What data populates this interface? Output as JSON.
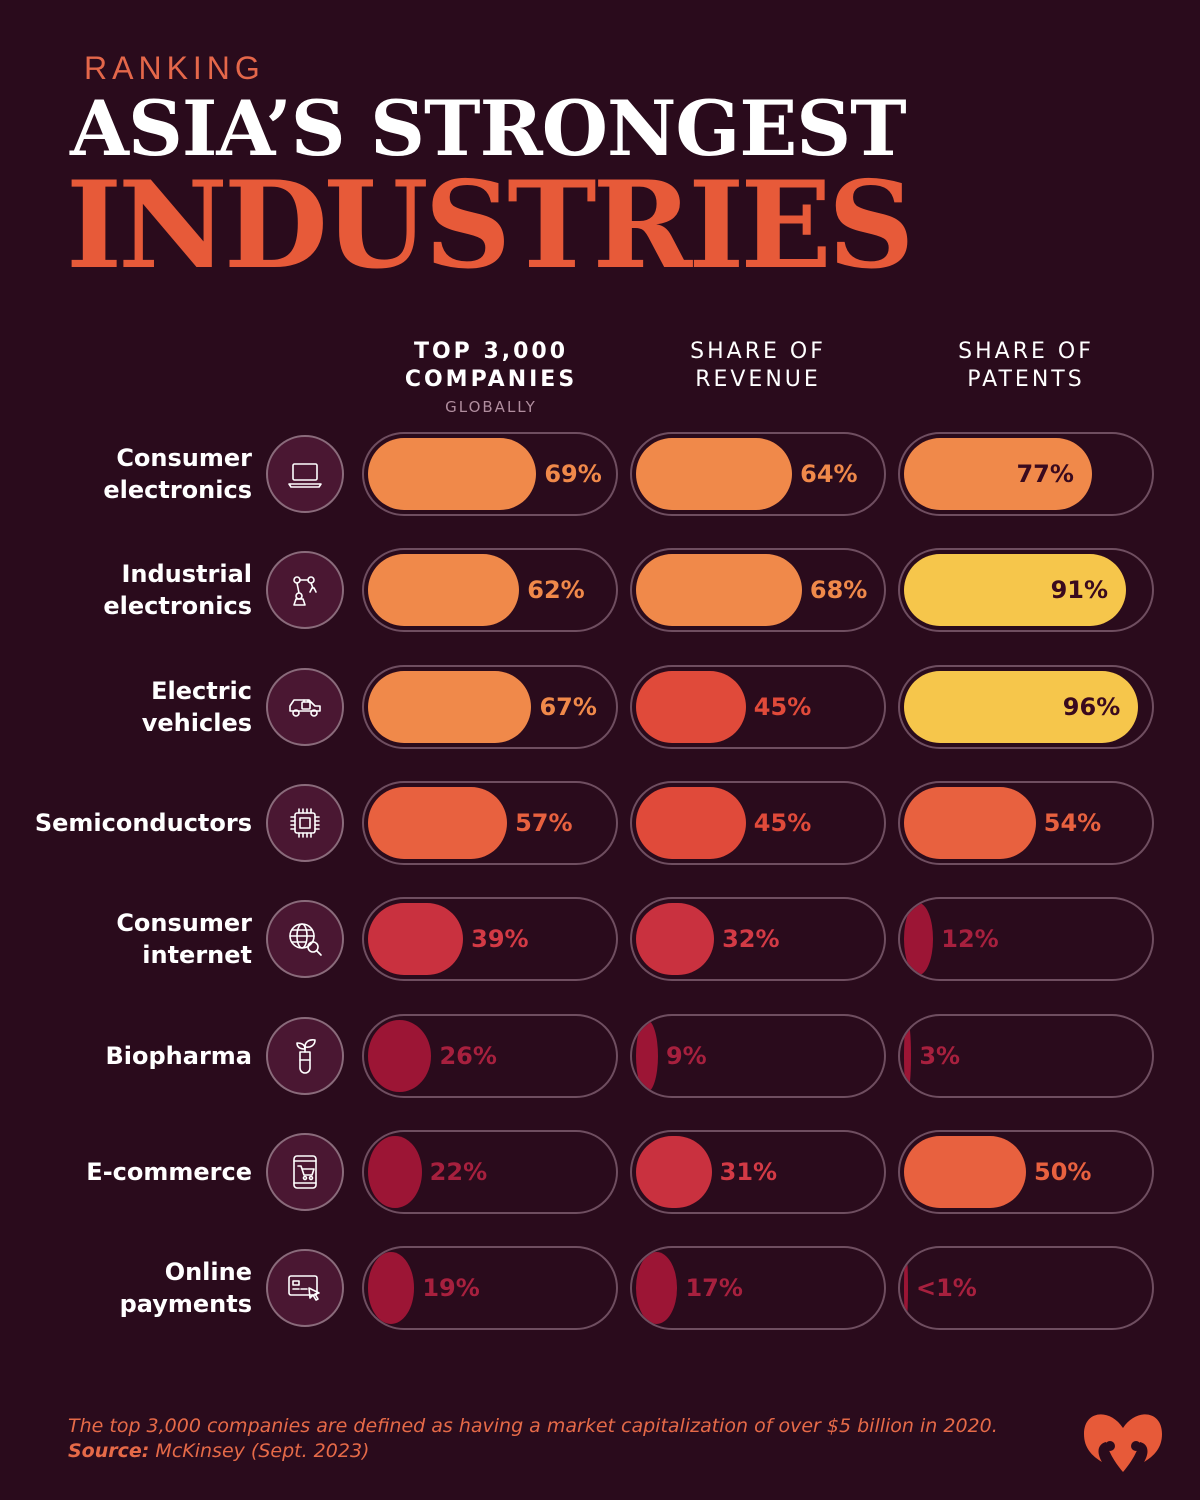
{
  "header": {
    "kicker": "RANKING",
    "title_line1": "ASIA’S STRONGEST",
    "title_line2": "INDUSTRIES"
  },
  "columns": [
    {
      "line1": "TOP 3,000",
      "line2": "COMPANIES",
      "sub": "GLOBALLY"
    },
    {
      "line1": "SHARE OF",
      "line2": "REVENUE",
      "sub": ""
    },
    {
      "line1": "SHARE OF",
      "line2": "PATENTS",
      "sub": ""
    }
  ],
  "rows": [
    {
      "line1": "Consumer",
      "line2": "electronics",
      "icon": "laptop-icon"
    },
    {
      "line1": "Industrial",
      "line2": "electronics",
      "icon": "robot-arm-icon"
    },
    {
      "line1": "Electric",
      "line2": "vehicles",
      "icon": "electric-car-icon"
    },
    {
      "line1": "Semiconductors",
      "line2": "",
      "icon": "chip-icon"
    },
    {
      "line1": "Consumer",
      "line2": "internet",
      "icon": "globe-search-icon"
    },
    {
      "line1": "Biopharma",
      "line2": "",
      "icon": "plant-test-tube-icon"
    },
    {
      "line1": "E-commerce",
      "line2": "",
      "icon": "mobile-cart-icon"
    },
    {
      "line1": "Online",
      "line2": "payments",
      "icon": "card-cursor-icon"
    }
  ],
  "chart_data": {
    "type": "bar",
    "categories": [
      "Consumer electronics",
      "Industrial electronics",
      "Electric vehicles",
      "Semiconductors",
      "Consumer internet",
      "Biopharma",
      "E-commerce",
      "Online payments"
    ],
    "series": [
      {
        "name": "TOP 3,000 COMPANIES GLOBALLY",
        "values": [
          69,
          62,
          67,
          57,
          39,
          26,
          22,
          19
        ],
        "labels": [
          "69%",
          "62%",
          "67%",
          "57%",
          "39%",
          "26%",
          "22%",
          "19%"
        ]
      },
      {
        "name": "SHARE OF REVENUE",
        "values": [
          64,
          68,
          45,
          45,
          32,
          9,
          31,
          17
        ],
        "labels": [
          "64%",
          "68%",
          "45%",
          "45%",
          "32%",
          "9%",
          "31%",
          "17%"
        ]
      },
      {
        "name": "SHARE OF PATENTS",
        "values": [
          77,
          91,
          96,
          54,
          12,
          3,
          50,
          0.5
        ],
        "labels": [
          "77%",
          "91%",
          "96%",
          "54%",
          "12%",
          "3%",
          "50%",
          "<1%"
        ]
      }
    ],
    "ylim": [
      0,
      100
    ],
    "colors": {
      "90-100": "#f6c64b",
      "60-89": "#f0894a",
      "50-59": "#e8613f",
      "40-49": "#e04a3a",
      "30-39": "#c9313f",
      "0-29": "#9c1535"
    }
  },
  "footnote": {
    "text": "The top 3,000 companies are defined as having a market capitalization of over $5 billion in 2020.",
    "source_label": "Source:",
    "source_text": " McKinsey (Sept. 2023)"
  }
}
